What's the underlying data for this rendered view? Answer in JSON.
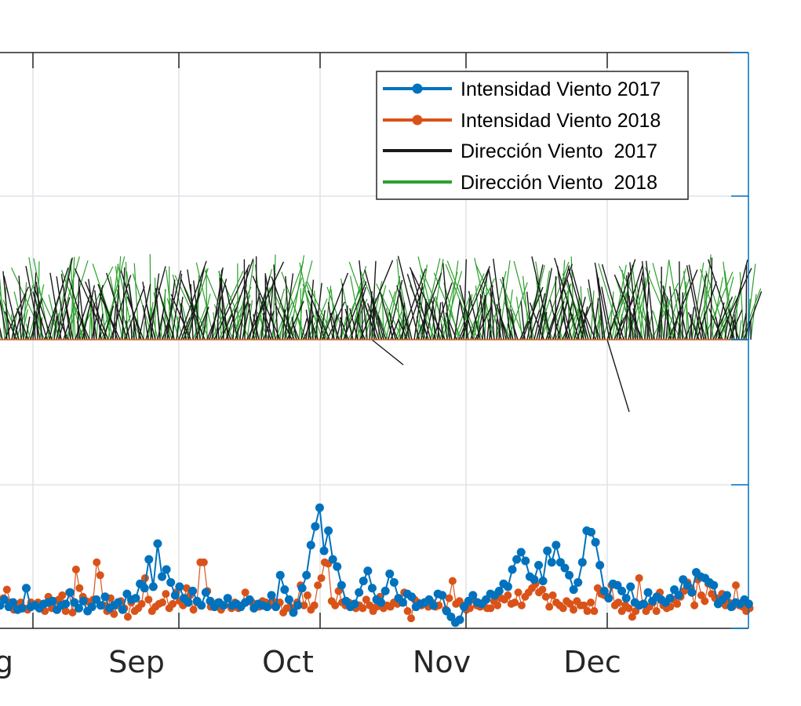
{
  "chart_data": {
    "type": "line",
    "x_tick_labels": [
      "g",
      "Sep",
      "Oct",
      "Nov",
      "Dec"
    ],
    "x_tick_dates": [
      "2017-08-01",
      "2017-09-01",
      "2017-10-01",
      "2017-11-01",
      "2017-12-01"
    ],
    "x_range": [
      "2017-07-25",
      "2017-12-31"
    ],
    "grid": true,
    "legend": {
      "placement": "top-right",
      "entries": [
        {
          "label": "Intensidad Viento 2017",
          "color": "#0072BD",
          "marker": "circle"
        },
        {
          "label": "Intensidad Viento 2018",
          "color": "#D95319",
          "marker": "circle"
        },
        {
          "label": "Dirección Viento  2017",
          "color": "#1a1a1a",
          "marker": "none"
        },
        {
          "label": "Dirección Viento  2018",
          "color": "#2ca02c",
          "marker": "none"
        }
      ]
    },
    "series": [
      {
        "name": "Intensidad Viento 2017",
        "color": "#0072BD",
        "start_date": "2017-07-25",
        "values": [
          1.6,
          2.0,
          1.5,
          1.8,
          1.3,
          1.4,
          2.8,
          1.5,
          1.6,
          1.4,
          1.7,
          1.8,
          1.9,
          1.3,
          1.6,
          1.7,
          2.5,
          1.8,
          1.4,
          1.9,
          1.2,
          1.5,
          2.0,
          1.6,
          2.2,
          1.4,
          1.6,
          1.8,
          1.3,
          2.4,
          2.0,
          2.1,
          3.1,
          2.8,
          4.8,
          2.9,
          5.9,
          3.6,
          4.1,
          3.2,
          2.3,
          2.9,
          2.1,
          1.8,
          2.6,
          1.9,
          1.6,
          2.5,
          1.9,
          1.5,
          1.8,
          1.6,
          2.1,
          1.6,
          1.7,
          1.5,
          1.8,
          2.0,
          1.4,
          1.7,
          1.6,
          1.5,
          2.3,
          1.5,
          3.7,
          2.7,
          2.0,
          1.1,
          1.6,
          2.8,
          3.7,
          5.8,
          7.1,
          8.4,
          5.4,
          6.8,
          4.8,
          4.3,
          3.0,
          1.9,
          1.5,
          1.7,
          2.5,
          3.3,
          4.0,
          2.8,
          2.0,
          1.8,
          2.6,
          3.8,
          3.2,
          2.1,
          1.8,
          2.4,
          2.2,
          1.5,
          1.7,
          1.8,
          2.0,
          1.6,
          2.4,
          2.3,
          1.2,
          0.8,
          0.4,
          0.6,
          1.5,
          1.9,
          2.3,
          1.8,
          1.7,
          2.0,
          2.4,
          2.3,
          2.6,
          3.1,
          2.9,
          4.1,
          4.8,
          5.3,
          4.7,
          3.6,
          3.4,
          4.4,
          3.3,
          5.4,
          4.6,
          5.8,
          4.6,
          4.2,
          3.7,
          2.7,
          3.2,
          4.6,
          6.8,
          6.7,
          6.0,
          4.4,
          2.6,
          2.1,
          3.1,
          3.0,
          2.6,
          2.1,
          2.9,
          1.8,
          1.6,
          1.7,
          2.5,
          1.9,
          2.2,
          2.0,
          1.8,
          2.1,
          2.7,
          2.3,
          3.4,
          3.0,
          2.5,
          3.9,
          3.6,
          3.5,
          3.2,
          3.0,
          1.7,
          2.0,
          2.3,
          1.5,
          1.8,
          1.7,
          2.0,
          1.7
        ]
      },
      {
        "name": "Intensidad Viento 2018",
        "color": "#D95319",
        "start_date": "2017-07-25",
        "values": [
          1.6,
          2.1,
          2.7,
          1.8,
          1.3,
          1.6,
          1.8,
          1.4,
          1.3,
          1.8,
          1.6,
          1.8,
          1.6,
          1.2,
          2.2,
          1.4,
          1.9,
          2.0,
          2.3,
          1.2,
          2.5,
          1.1,
          4.1,
          2.8,
          2.2,
          1.9,
          1.8,
          2.0,
          4.6,
          3.7,
          1.6,
          1.2,
          2.1,
          1.0,
          1.6,
          1.9,
          1.4,
          0.8,
          1.8,
          1.2,
          1.4,
          1.7,
          3.5,
          2.0,
          1.2,
          1.5,
          1.7,
          1.8,
          2.4,
          1.4,
          1.7,
          2.5,
          1.9,
          1.6,
          2.8,
          2.3,
          1.3,
          1.8,
          4.6,
          4.6,
          2.6,
          1.5,
          1.5,
          1.8,
          1.3,
          1.6,
          2.1,
          1.4,
          1.8,
          1.4,
          1.6,
          2.5,
          1.9,
          1.8,
          1.6,
          1.5,
          1.9,
          1.8,
          1.6,
          1.9,
          1.8,
          1.8,
          1.1,
          1.4,
          1.5,
          1.2,
          1.8,
          3.0,
          1.6,
          2.3,
          1.3,
          1.6,
          3.0,
          3.5,
          4.6,
          4.5,
          1.9,
          1.6,
          2.6,
          1.8,
          1.6,
          1.8,
          1.5,
          1.4,
          1.6,
          1.4,
          2.0,
          1.6,
          1.2,
          1.5,
          2.2,
          1.4,
          1.6,
          1.5,
          1.8,
          1.7,
          1.9,
          2.5,
          1.2,
          0.7,
          2.0,
          1.8,
          1.6,
          1.7,
          1.5,
          1.8,
          1.5,
          1.6,
          2.3,
          1.3,
          2.1,
          3.3,
          1.7,
          1.9,
          1.6,
          1.3,
          1.4,
          2.0,
          1.6,
          1.5,
          1.8,
          1.4,
          1.4,
          1.9,
          1.6,
          2.1,
          2.0,
          2.3,
          1.7,
          1.8,
          2.5,
          1.6,
          2.2,
          2.5,
          2.8,
          3.1,
          2.5,
          2.7,
          2.2,
          1.5,
          2.3,
          1.8,
          1.6,
          1.4,
          1.9,
          1.7,
          1.3,
          1.9,
          1.6,
          1.6,
          1.2,
          1.8,
          1.2,
          2.8,
          2.4,
          2.3,
          2.2,
          3.0,
          1.6,
          1.8,
          1.2,
          1.6,
          1.4,
          0.8,
          1.2,
          3.5,
          1.7,
          1.2,
          1.5,
          1.8,
          1.2,
          2.5,
          1.6,
          1.4,
          1.5,
          2.0,
          1.7,
          2.2,
          2.6,
          3.2,
          2.8,
          1.6,
          3.4,
          2.3,
          1.9,
          3.1,
          2.4,
          2.1,
          2.1,
          2.4,
          1.6,
          1.8,
          1.5,
          3.0,
          1.6,
          1.5,
          1.2,
          1.4
        ]
      }
    ]
  }
}
